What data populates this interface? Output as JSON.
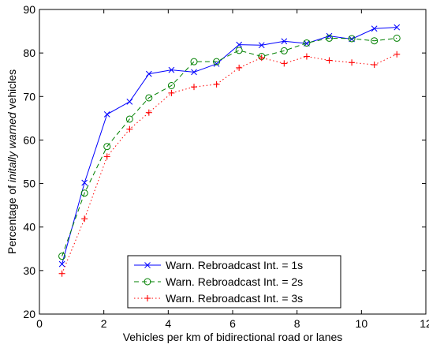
{
  "chart_data": {
    "type": "line",
    "title": "",
    "xlabel": "Vehicles per km of bidirectional road or lanes",
    "ylabel": {
      "prefix": "Percentage of ",
      "emphasis": "initally warned",
      "suffix": " vehicles"
    },
    "xlim": [
      0,
      12
    ],
    "ylim": [
      20,
      90
    ],
    "xticks": [
      0,
      2,
      4,
      6,
      8,
      10,
      12
    ],
    "yticks": [
      20,
      30,
      40,
      50,
      60,
      70,
      80,
      90
    ],
    "grid": false,
    "legend_position": "bottom-center",
    "x": [
      0.7,
      1.4,
      2.1,
      2.8,
      3.4,
      4.1,
      4.8,
      5.5,
      6.2,
      6.9,
      7.6,
      8.3,
      9.0,
      9.7,
      10.4,
      11.1
    ],
    "series": [
      {
        "name": "Warn. Rebroadcast Int. = 1s",
        "color": "#0000ff",
        "marker": "x",
        "dash": "solid",
        "values": [
          31.5,
          50.2,
          65.9,
          68.8,
          75.2,
          76.1,
          75.6,
          77.5,
          81.9,
          81.8,
          82.7,
          82.2,
          83.9,
          83.2,
          85.6,
          85.9
        ]
      },
      {
        "name": "Warn. Rebroadcast Int. = 2s",
        "color": "#008000",
        "marker": "o",
        "dash": "dashed",
        "values": [
          33.3,
          47.8,
          58.5,
          64.8,
          69.7,
          72.5,
          78.0,
          78.0,
          80.6,
          79.2,
          80.5,
          82.3,
          83.4,
          83.3,
          82.8,
          83.4
        ]
      },
      {
        "name": "Warn. Rebroadcast Int. = 3s",
        "color": "#ff0000",
        "marker": "+",
        "dash": "dotted",
        "values": [
          29.3,
          41.9,
          56.2,
          62.5,
          66.3,
          70.8,
          72.2,
          72.8,
          76.6,
          78.9,
          77.6,
          79.2,
          78.3,
          77.8,
          77.3,
          79.7
        ]
      }
    ]
  }
}
